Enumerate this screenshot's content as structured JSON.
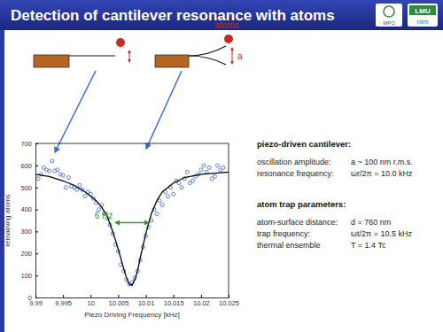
{
  "slide": {
    "title": "Detection of cantilever resonance with atoms",
    "logos": [
      "MPQ",
      "LMU",
      "nim"
    ],
    "diagram": {
      "atoms_label": "atoms",
      "amplitude_label": "a"
    },
    "panel": [
      {
        "heading": "piezo-driven cantilever:",
        "rows": [
          [
            "oscillation amplitude:",
            "a ~ 100 nm r.m.s."
          ],
          [
            "resonance frequency:",
            "ωr/2π = 10.0 kHz"
          ]
        ]
      },
      {
        "heading": "atom trap parameters:",
        "rows": [
          [
            "atom-surface distance:",
            "d = 760 nm"
          ],
          [
            "trap frequency:",
            "ωt/2π = 10.5 kHz"
          ],
          [
            "thermal ensemble",
            "T = 1.4 Tc"
          ]
        ]
      }
    ]
  },
  "chart_data": {
    "type": "scatter",
    "x_label": "Piezo Driving Frequency [kHz]",
    "y_label": "remaining atoms",
    "xlim": [
      9.99,
      10.025
    ],
    "xticks": [
      9.99,
      9.995,
      10,
      10.005,
      10.01,
      10.015,
      10.02,
      10.025
    ],
    "ylim": [
      0,
      700
    ],
    "yticks": [
      0,
      100,
      200,
      300,
      400,
      500,
      600,
      700
    ],
    "grid": false,
    "annotations": [
      {
        "text": "6 Hz",
        "x": [
          10.0045,
          10.0105
        ],
        "y": 340
      }
    ],
    "series": [
      {
        "type": "scatter",
        "color": "#4a6fd8",
        "marker": "circle",
        "x": [
          9.9905,
          9.991,
          9.9915,
          9.992,
          9.9925,
          9.993,
          9.9935,
          9.994,
          9.9945,
          9.995,
          9.9955,
          9.996,
          9.9965,
          9.997,
          9.9975,
          9.998,
          9.9985,
          9.999,
          9.9995,
          10.0,
          10.0005,
          10.001,
          10.0015,
          10.002,
          10.0025,
          10.003,
          10.0035,
          10.004,
          10.0045,
          10.005,
          10.0055,
          10.006,
          10.0065,
          10.007,
          10.0075,
          10.008,
          10.0085,
          10.009,
          10.0095,
          10.01,
          10.0105,
          10.011,
          10.0115,
          10.012,
          10.0125,
          10.013,
          10.0135,
          10.014,
          10.0145,
          10.015,
          10.0155,
          10.016,
          10.0165,
          10.017,
          10.0175,
          10.018,
          10.0185,
          10.019,
          10.0195,
          10.02,
          10.0205,
          10.021,
          10.0215,
          10.022,
          10.0225,
          10.023,
          10.0235,
          10.024
        ],
        "values": [
          540,
          560,
          590,
          580,
          575,
          620,
          575,
          580,
          560,
          555,
          500,
          545,
          505,
          500,
          490,
          510,
          490,
          460,
          480,
          470,
          450,
          430,
          400,
          420,
          380,
          360,
          330,
          290,
          240,
          210,
          150,
          120,
          80,
          60,
          70,
          90,
          120,
          170,
          230,
          280,
          320,
          350,
          400,
          380,
          440,
          420,
          480,
          460,
          500,
          470,
          530,
          520,
          500,
          540,
          570,
          520,
          530,
          550,
          560,
          580,
          600,
          570,
          590,
          540,
          550,
          600,
          580,
          590
        ]
      },
      {
        "type": "line",
        "color": "#000000",
        "line_style": "solid",
        "x": [
          9.99,
          9.9925,
          9.995,
          9.997,
          9.999,
          10.001,
          10.002,
          10.003,
          10.004,
          10.005,
          10.006,
          10.0065,
          10.007,
          10.0075,
          10.008,
          10.0085,
          10.009,
          10.01,
          10.011,
          10.012,
          10.013,
          10.015,
          10.017,
          10.02,
          10.025
        ],
        "values": [
          560,
          550,
          530,
          510,
          480,
          440,
          410,
          370,
          300,
          220,
          130,
          90,
          60,
          55,
          80,
          120,
          180,
          290,
          380,
          440,
          480,
          520,
          545,
          560,
          570
        ]
      }
    ]
  }
}
